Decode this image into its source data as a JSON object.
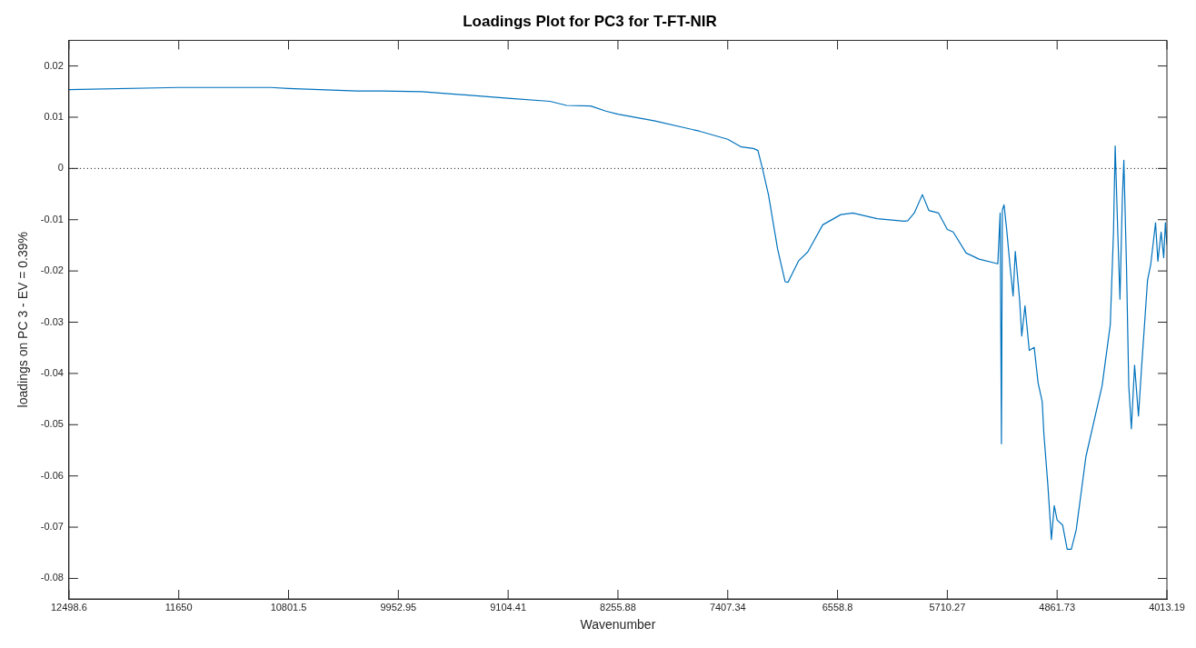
{
  "chart_data": {
    "type": "line",
    "title": "Loadings Plot for PC3 for T-FT-NIR",
    "xlabel": "Wavenumber",
    "ylabel": "loadings on PC 3 - EV = 0.39%",
    "xlim": [
      12498.6,
      4013.19
    ],
    "xticks": [
      12498.6,
      11650,
      10801.5,
      9952.95,
      9104.41,
      8255.88,
      7407.34,
      6558.8,
      5710.27,
      4861.73,
      4013.19
    ],
    "ylim": [
      -0.084,
      0.025
    ],
    "yticks": [
      0.02,
      0.01,
      0,
      -0.01,
      -0.02,
      -0.03,
      -0.04,
      -0.05,
      -0.06,
      -0.07,
      -0.08
    ],
    "grid": false,
    "legend": false,
    "marker": "none",
    "ref_lines": [
      {
        "axis": "y",
        "value": 0,
        "color": "#000000",
        "line_style": "dotted"
      }
    ],
    "x": [
      12498.6,
      11650,
      10940,
      10801.5,
      10273,
      10074,
      9771,
      9104.41,
      8781,
      8653,
      8466,
      8350,
      8255.88,
      7977,
      7628,
      7407.34,
      7302,
      7209,
      7174,
      7139,
      7092,
      7022,
      6964,
      6941,
      6859,
      6789,
      6673,
      6533,
      6440,
      6253,
      6044,
      6016,
      5966,
      5903,
      5853,
      5778,
      5710,
      5665,
      5565,
      5465,
      5320,
      5302,
      5292,
      5285,
      5272,
      5252,
      5227,
      5202,
      5185,
      5152,
      5135,
      5110,
      5077,
      5039,
      5009,
      4977,
      4964,
      4934,
      4906,
      4884,
      4861.73,
      4819,
      4784,
      4752,
      4714,
      4639,
      4514,
      4451,
      4426,
      4413,
      4393,
      4376,
      4358,
      4346,
      4326,
      4308,
      4288,
      4263,
      4233,
      4208,
      4183,
      4163,
      4138,
      4101,
      4083,
      4058,
      4038,
      4025,
      4013.19
    ],
    "series": [
      {
        "color": "#0072bd",
        "values": [
          0.0154,
          0.0158,
          0.0158,
          0.0156,
          0.0151,
          0.0151,
          0.015,
          0.0137,
          0.0131,
          0.0123,
          0.0122,
          0.0112,
          0.0106,
          0.0093,
          0.0073,
          0.0057,
          0.0042,
          0.0039,
          0.0035,
          0,
          -0.0052,
          -0.0157,
          -0.0221,
          -0.0222,
          -0.018,
          -0.0163,
          -0.011,
          -0.009,
          -0.0087,
          -0.0098,
          -0.0103,
          -0.0102,
          -0.0087,
          -0.0051,
          -0.0082,
          -0.0087,
          -0.0119,
          -0.0124,
          -0.0165,
          -0.0177,
          -0.0186,
          -0.0087,
          -0.0537,
          -0.0081,
          -0.0071,
          -0.0118,
          -0.0187,
          -0.0249,
          -0.0162,
          -0.0255,
          -0.0327,
          -0.0268,
          -0.0355,
          -0.0349,
          -0.0418,
          -0.0455,
          -0.0518,
          -0.0615,
          -0.0724,
          -0.0658,
          -0.0686,
          -0.0696,
          -0.0743,
          -0.0743,
          -0.0705,
          -0.0562,
          -0.0424,
          -0.0305,
          -0.0124,
          0.0044,
          -0.0124,
          -0.0255,
          -0.0062,
          0.0016,
          -0.0187,
          -0.0424,
          -0.0508,
          -0.0384,
          -0.0483,
          -0.0384,
          -0.0293,
          -0.0218,
          -0.0187,
          -0.0106,
          -0.0181,
          -0.0124,
          -0.0174,
          -0.0106,
          -0.0149
        ]
      }
    ]
  }
}
